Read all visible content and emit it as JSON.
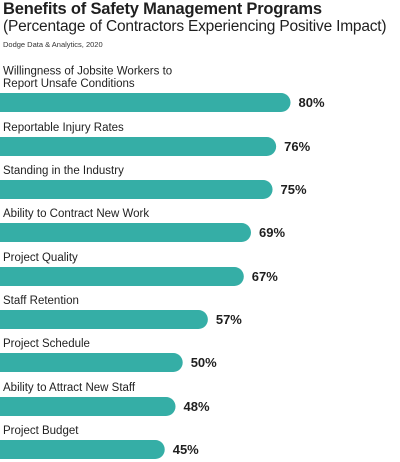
{
  "header": {
    "title": "Benefits of Safety Management Programs",
    "subtitle": "(Percentage of Contractors Experiencing Positive Impact)",
    "source": "Dodge Data & Analytics, 2020"
  },
  "colors": {
    "bar": "#35aea6",
    "text": "#1f1f1f"
  },
  "chart_data": {
    "type": "bar",
    "orientation": "horizontal",
    "title": "Benefits of Safety Management Programs",
    "subtitle": "(Percentage of Contractors Experiencing Positive Impact)",
    "categories": [
      [
        "Willingness of Jobsite Workers to",
        "Report Unsafe Conditions"
      ],
      [
        "Reportable Injury Rates"
      ],
      [
        "Standing in the Industry"
      ],
      [
        "Ability to Contract New Work"
      ],
      [
        "Project Quality"
      ],
      [
        "Staff Retention"
      ],
      [
        "Project Schedule"
      ],
      [
        "Ability to Attract New Staff"
      ],
      [
        "Project Budget"
      ]
    ],
    "values": [
      80,
      76,
      75,
      69,
      67,
      57,
      50,
      48,
      45
    ],
    "value_labels": [
      "80%",
      "76%",
      "75%",
      "69%",
      "67%",
      "57%",
      "50%",
      "48%",
      "45%"
    ],
    "unit": "%",
    "xlim": [
      0,
      100
    ],
    "grid": false,
    "legend": "none"
  }
}
